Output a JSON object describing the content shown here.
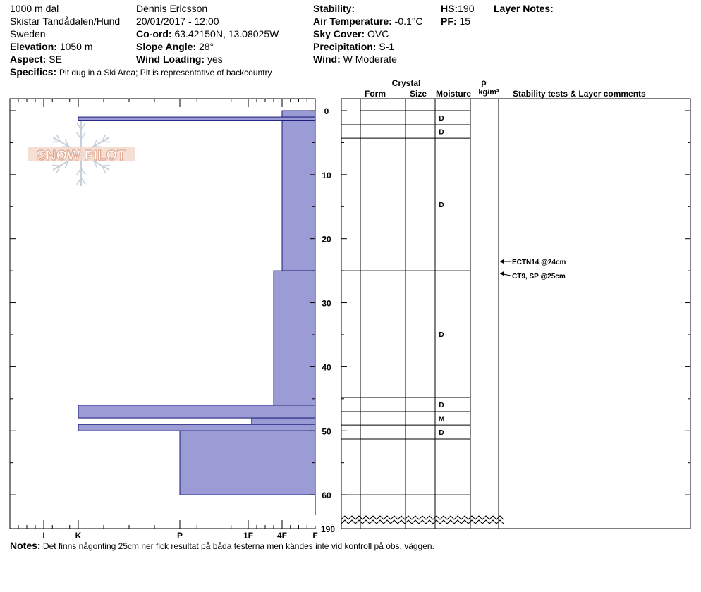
{
  "header": {
    "location_line1": "1000 m dal",
    "location_line2": "Skistar Tandådalen/Hund",
    "location_line3": "Sweden",
    "elevation_label": "Elevation:",
    "elevation_value": "1050 m",
    "aspect_label": "Aspect:",
    "aspect_value": "SE",
    "specifics_label": "Specifics:",
    "specifics_value": "Pit dug in a Ski Area; Pit is representative of backcountry",
    "observer": "Dennis Ericsson",
    "datetime": "20/01/2017 - 12:00",
    "coord_label": "Co-ord:",
    "coord_value": "63.42150N, 13.08025W",
    "slope_label": "Slope Angle:",
    "slope_value": "28°",
    "wind_loading_label": "Wind Loading:",
    "wind_loading_value": "yes",
    "stability_label": "Stability:",
    "stability_value": "",
    "air_temp_label": "Air Temperature:",
    "air_temp_value": "-0.1°C",
    "sky_label": "Sky Cover:",
    "sky_value": "OVC",
    "precip_label": "Precipitation:",
    "precip_value": "S-1",
    "wind_label": "Wind:",
    "wind_value": "W Moderate",
    "hs_label": "HS:",
    "hs_value": "190",
    "pf_label": "PF:",
    "pf_value": "15",
    "layer_notes_label": "Layer Notes:"
  },
  "notes": {
    "label": "Notes:",
    "text": "Det finns någonting 25cm ner fick resultat på båda testerna men kändes inte vid kontroll på obs. väggen."
  },
  "table_headers": {
    "crystal": "Crystal",
    "form": "Form",
    "size": "Size",
    "moisture": "Moisture",
    "rho": "ρ",
    "density_unit": "kg/m³",
    "stability": "Stability tests & Layer comments"
  },
  "watermark": "SNOW PILOT",
  "colors": {
    "profile_fill": "#9b9bd6",
    "profile_stroke": "#1a1a7a",
    "watermark_text": "#e8b8a8",
    "watermark_flake": "#c7d0d8"
  },
  "chart_data": {
    "type": "hardness profile",
    "y_axis_label": "",
    "y_ticks_major": [
      0,
      10,
      20,
      30,
      40,
      50,
      60
    ],
    "y_max_label": "190",
    "y_range": [
      0,
      62
    ],
    "hardness_ticks": [
      {
        "label": "I",
        "index": 1
      },
      {
        "label": "K",
        "index": 2
      },
      {
        "label": "P",
        "index": 3
      },
      {
        "label": "1F",
        "index": 4
      },
      {
        "label": "4F",
        "index": 5
      },
      {
        "label": "F",
        "index": 6
      }
    ],
    "hardness_profile": [
      {
        "top": 0,
        "bottom": 1,
        "hardness": 5
      },
      {
        "top": 1,
        "bottom": 1.5,
        "hardness": 2
      },
      {
        "top": 1.5,
        "bottom": 25,
        "hardness": 5
      },
      {
        "top": 25,
        "bottom": 46,
        "hardness": 4.75
      },
      {
        "top": 46,
        "bottom": 48,
        "hardness": 2
      },
      {
        "top": 48,
        "bottom": 49,
        "hardness": 4.1
      },
      {
        "top": 49,
        "bottom": 50,
        "hardness": 2
      },
      {
        "top": 50,
        "bottom": 60,
        "hardness": 3
      }
    ],
    "layers": [
      {
        "top": 0,
        "bottom": 2.2,
        "moisture": "D"
      },
      {
        "top": 2.2,
        "bottom": 4.3,
        "moisture": "D"
      },
      {
        "top": 4.3,
        "bottom": 25,
        "moisture": "D"
      },
      {
        "top": 25,
        "bottom": 44.8,
        "moisture": "D"
      },
      {
        "top": 44.8,
        "bottom": 47,
        "moisture": "D"
      },
      {
        "top": 47,
        "bottom": 49.1,
        "moisture": "M"
      },
      {
        "top": 49.1,
        "bottom": 51.3,
        "moisture": "D"
      },
      {
        "top": 51.3,
        "bottom": 60,
        "moisture": ""
      }
    ],
    "stability_tests": [
      {
        "label": "ECTN14 @24cm",
        "depth": 24
      },
      {
        "label": "CT9, SP @25cm",
        "depth": 25
      }
    ]
  }
}
